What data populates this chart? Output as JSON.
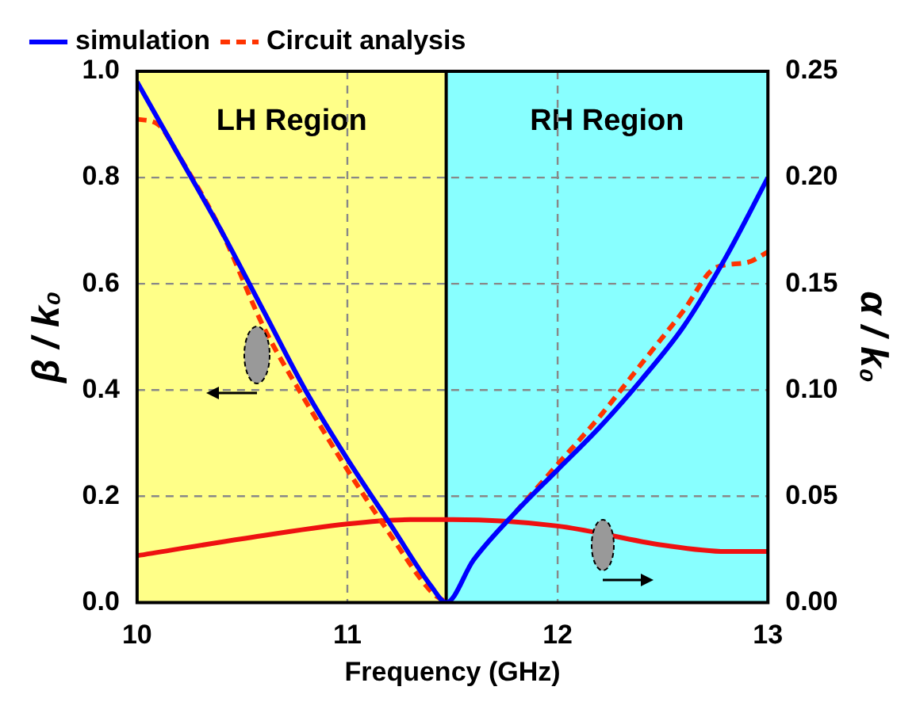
{
  "chart_data": {
    "type": "line",
    "xlabel": "Frequency (GHz)",
    "ylabel": "β / k₀",
    "y2label": "α / k₀",
    "xlim": [
      10,
      13
    ],
    "xticks": [
      10,
      11,
      12,
      13
    ],
    "ylim": [
      0,
      1
    ],
    "yticks": [
      {
        "value": 0,
        "label": "0.0"
      },
      {
        "value": 0.2,
        "label": "0.2"
      },
      {
        "value": 0.4,
        "label": "0.4"
      },
      {
        "value": 0.6,
        "label": "0.6"
      },
      {
        "value": 0.8,
        "label": "0.8"
      },
      {
        "value": 1,
        "label": "1.0"
      }
    ],
    "y2lim": [
      0,
      0.25
    ],
    "y2ticks": [
      {
        "value": 0,
        "label": "0.00"
      },
      {
        "value": 0.05,
        "label": "0.05"
      },
      {
        "value": 0.1,
        "label": "0.10"
      },
      {
        "value": 0.15,
        "label": "0.15"
      },
      {
        "value": 0.2,
        "label": "0.20"
      },
      {
        "value": 0.25,
        "label": "0.25"
      }
    ],
    "grid": true,
    "legend": "top left",
    "marker": "none",
    "bands": [
      {
        "axis": "x",
        "from": 10,
        "to": 11.47,
        "label": "LH Region",
        "color": "#ffff88"
      },
      {
        "axis": "x",
        "from": 11.47,
        "to": 13,
        "label": "RH Region",
        "color": "#88ffff"
      }
    ],
    "ref_lines": [
      {
        "axis": "x",
        "value": 11.47,
        "color": "#000000"
      }
    ],
    "series": [
      {
        "name": "simulation",
        "color": "#0000ff",
        "line_style": "solid",
        "x": [
          10,
          10.2,
          10.4,
          10.6,
          10.8,
          11,
          11.2,
          11.4,
          11.47,
          11.6,
          11.8,
          12,
          12.2,
          12.4,
          12.6,
          12.8,
          13
        ],
        "values": [
          0.98,
          0.84,
          0.7,
          0.55,
          0.4,
          0.27,
          0.15,
          0.03,
          0,
          0.08,
          0.17,
          0.25,
          0.33,
          0.42,
          0.52,
          0.65,
          0.8
        ]
      },
      {
        "name": "Circuit analysis",
        "color": "#ff3300",
        "line_style": "dashed",
        "x": [
          10,
          10.1,
          10.2,
          10.4,
          10.6,
          10.8,
          11,
          11.2,
          11.4,
          11.47,
          11.6,
          11.8,
          12,
          12.2,
          12.4,
          12.6,
          12.75,
          12.9,
          13
        ],
        "values": [
          0.91,
          0.9,
          0.84,
          0.7,
          0.52,
          0.38,
          0.25,
          0.13,
          0.02,
          0,
          null,
          0.17,
          0.26,
          0.35,
          0.45,
          0.55,
          0.63,
          0.64,
          0.66
        ]
      },
      {
        "color": "#ee1111",
        "line_style": "solid",
        "axis": "y2",
        "x": [
          10,
          10.5,
          11,
          11.3,
          11.5,
          12,
          12.5,
          12.8,
          13
        ],
        "values": [
          0.022,
          0.03,
          0.037,
          0.039,
          0.039,
          0.036,
          0.027,
          0.024,
          0.024
        ]
      }
    ]
  }
}
